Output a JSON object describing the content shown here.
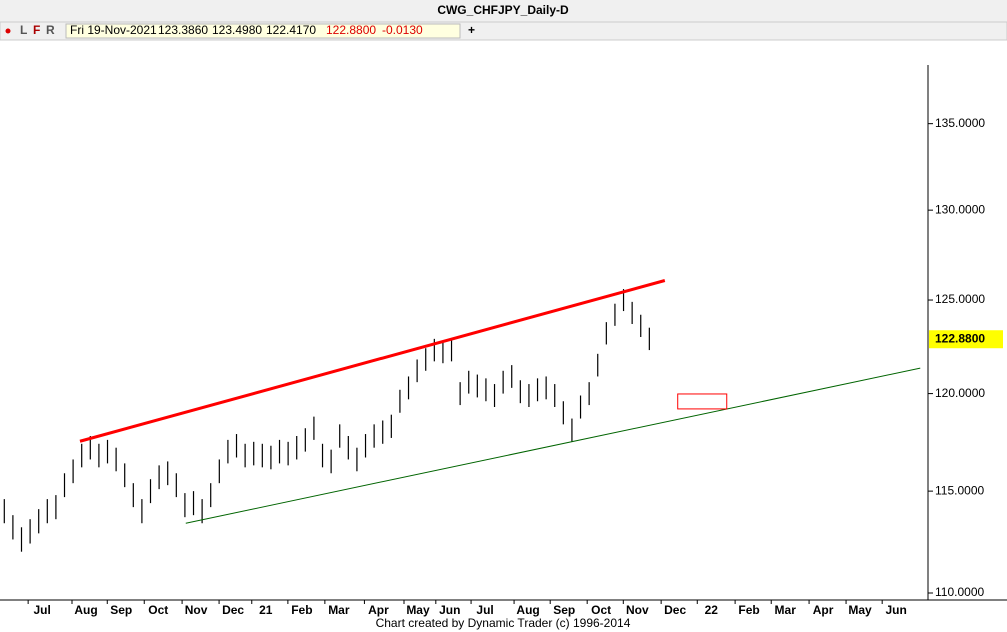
{
  "header": {
    "title": "CWG_CHFJPY_Daily-D",
    "flags": [
      "L",
      "F",
      "R"
    ],
    "date": "Fri 19-Nov-2021",
    "open": "123.3860",
    "high": "123.4980",
    "low": "122.4170",
    "close": "122.8800",
    "change": "-0.0130",
    "add": "+"
  },
  "footer": "Chart created by Dynamic Trader  (c) 1996-2014",
  "chart_data": {
    "type": "ohlc",
    "log_scale": true,
    "color": "#000000",
    "ylim": [
      109.76,
      138.5
    ],
    "yticks": [
      {
        "value": 110,
        "label": "110.0000"
      },
      {
        "value": 115,
        "label": "115.0000"
      },
      {
        "value": 120,
        "label": "120.0000"
      },
      {
        "value": 125,
        "label": "125.0000"
      },
      {
        "value": 130,
        "label": "130.0000"
      },
      {
        "value": 135,
        "label": "135.0000"
      }
    ],
    "xlim": [
      0,
      107.9
    ],
    "xticks": [
      {
        "value": 4.9,
        "label": "Jul"
      },
      {
        "value": 10,
        "label": "Aug"
      },
      {
        "value": 14.1,
        "label": "Sep"
      },
      {
        "value": 18.4,
        "label": "Oct"
      },
      {
        "value": 22.8,
        "label": "Nov"
      },
      {
        "value": 27.1,
        "label": "Dec"
      },
      {
        "value": 30.9,
        "label": "21"
      },
      {
        "value": 35.1,
        "label": "Feb"
      },
      {
        "value": 39.4,
        "label": "Mar"
      },
      {
        "value": 44,
        "label": "Apr"
      },
      {
        "value": 48.6,
        "label": "May"
      },
      {
        "value": 52.3,
        "label": "Jun"
      },
      {
        "value": 56.4,
        "label": "Jul"
      },
      {
        "value": 61.4,
        "label": "Aug"
      },
      {
        "value": 65.6,
        "label": "Sep"
      },
      {
        "value": 69.9,
        "label": "Oct"
      },
      {
        "value": 74.1,
        "label": "Nov"
      },
      {
        "value": 78.5,
        "label": "Dec"
      },
      {
        "value": 82.7,
        "label": "22"
      },
      {
        "value": 87.1,
        "label": "Feb"
      },
      {
        "value": 91.3,
        "label": "Mar"
      },
      {
        "value": 95.7,
        "label": "Apr"
      },
      {
        "value": 100,
        "label": "May"
      },
      {
        "value": 104.2,
        "label": "Jun"
      }
    ],
    "highs": [
      114.6,
      113.8,
      113.2,
      113.6,
      114.1,
      114.6,
      114.8,
      115.9,
      116.6,
      117.4,
      117.8,
      117.4,
      117.6,
      117.2,
      116.4,
      115.4,
      114.6,
      115.6,
      116.3,
      116.5,
      115.9,
      114.9,
      115.0,
      114.6,
      115.4,
      116.6,
      117.6,
      117.9,
      117.4,
      117.5,
      117.4,
      117.3,
      117.6,
      117.5,
      117.8,
      118.2,
      118.8,
      117.4,
      117.1,
      118.4,
      117.8,
      117.2,
      117.9,
      118.4,
      118.6,
      118.9,
      120.2,
      120.9,
      121.8,
      122.4,
      122.9,
      122.8,
      122.9,
      120.6,
      121.2,
      121.0,
      120.8,
      120.5,
      121.2,
      121.5,
      120.7,
      120.5,
      120.8,
      120.9,
      120.5,
      119.6,
      118.7,
      119.9,
      120.6,
      122.1,
      123.8,
      124.8,
      125.6,
      124.9,
      124.2,
      123.5
    ],
    "lows": [
      113.4,
      112.6,
      112.0,
      112.4,
      112.9,
      113.4,
      113.6,
      114.7,
      115.4,
      116.2,
      116.6,
      116.2,
      116.4,
      116.0,
      115.2,
      114.2,
      113.4,
      114.4,
      115.1,
      115.3,
      114.7,
      113.7,
      113.8,
      113.4,
      114.2,
      115.4,
      116.4,
      116.7,
      116.2,
      116.3,
      116.2,
      116.1,
      116.4,
      116.3,
      116.6,
      117.0,
      117.6,
      116.2,
      115.9,
      117.2,
      116.6,
      116.0,
      116.7,
      117.2,
      117.4,
      117.7,
      119.0,
      119.7,
      120.6,
      121.2,
      121.7,
      121.6,
      121.7,
      119.4,
      120.0,
      119.8,
      119.6,
      119.3,
      120.0,
      120.3,
      119.5,
      119.3,
      119.6,
      119.7,
      119.3,
      118.4,
      117.5,
      118.7,
      119.4,
      120.9,
      122.6,
      123.6,
      124.4,
      123.7,
      123.0,
      122.3
    ],
    "last_price": {
      "value": 122.88,
      "label": "122.8800"
    },
    "lines": [
      {
        "color": "#ff0000",
        "x": [
          9.3,
          77.3
        ],
        "y": [
          117.53,
          126.07
        ]
      },
      {
        "color": "#006400",
        "x": [
          21.6,
          107
        ],
        "y": [
          113.4,
          121.34
        ]
      }
    ],
    "target_box": {
      "color": "#ff0000",
      "x": [
        78.8,
        84.5
      ],
      "y": [
        119.98,
        119.2
      ]
    }
  }
}
